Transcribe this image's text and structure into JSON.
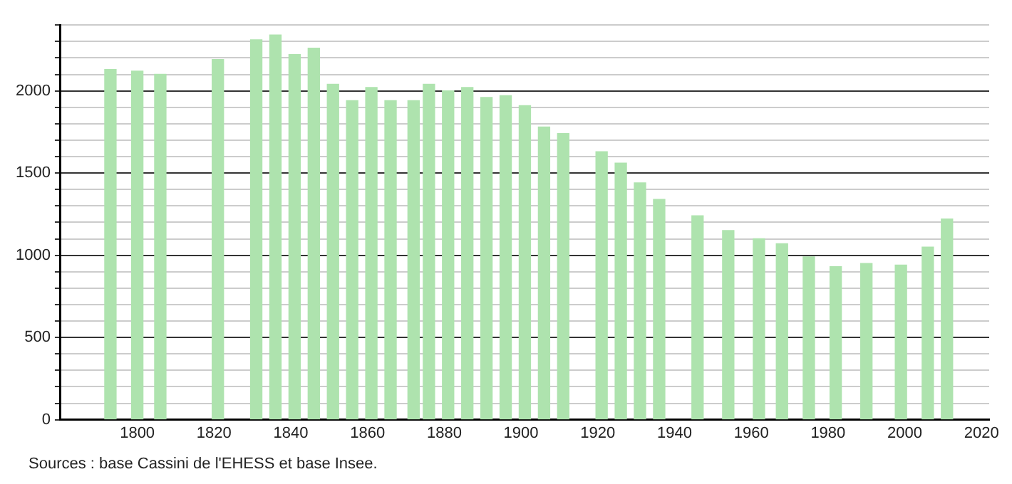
{
  "chart_data": {
    "type": "bar",
    "x": [
      1793,
      1800,
      1806,
      1821,
      1831,
      1836,
      1841,
      1846,
      1851,
      1856,
      1861,
      1866,
      1872,
      1876,
      1881,
      1886,
      1891,
      1896,
      1901,
      1906,
      1911,
      1921,
      1926,
      1931,
      1936,
      1946,
      1954,
      1962,
      1968,
      1975,
      1982,
      1990,
      1999,
      2006,
      2011
    ],
    "values": [
      2130,
      2120,
      2100,
      2190,
      2310,
      2340,
      2220,
      2260,
      2040,
      1940,
      2020,
      1940,
      1940,
      2040,
      2000,
      2020,
      1960,
      1970,
      1910,
      1780,
      1740,
      1630,
      1560,
      1440,
      1340,
      1240,
      1150,
      1100,
      1070,
      990,
      930,
      950,
      940,
      1050,
      1220
    ],
    "color": "#aee3ae",
    "xlim": [
      1780,
      2022
    ],
    "xticks": [
      1800,
      1820,
      1840,
      1860,
      1880,
      1900,
      1920,
      1940,
      1960,
      1980,
      2000,
      2020
    ],
    "ylim": [
      0,
      2400
    ],
    "yticks": [
      0,
      {
        "value": 100,
        "label": null
      },
      {
        "value": 200,
        "label": null
      },
      {
        "value": 300,
        "label": null
      },
      {
        "value": 400,
        "label": null
      },
      500,
      {
        "value": 600,
        "label": null
      },
      {
        "value": 700,
        "label": null
      },
      {
        "value": 800,
        "label": null
      },
      {
        "value": 900,
        "label": null
      },
      1000,
      {
        "value": 1100,
        "label": null
      },
      {
        "value": 1200,
        "label": null
      },
      {
        "value": 1300,
        "label": null
      },
      {
        "value": 1400,
        "label": null
      },
      1500,
      {
        "value": 1600,
        "label": null
      },
      {
        "value": 1700,
        "label": null
      },
      {
        "value": 1800,
        "label": null
      },
      {
        "value": 1900,
        "label": null
      },
      2000,
      {
        "value": 2100,
        "label": null
      },
      {
        "value": 2200,
        "label": null
      },
      {
        "value": 2300,
        "label": null
      },
      {
        "value": 2400,
        "label": null
      }
    ],
    "grid": "y",
    "annotations": [
      "Sources : base Cassini de l'EHESS et base Insee."
    ]
  }
}
